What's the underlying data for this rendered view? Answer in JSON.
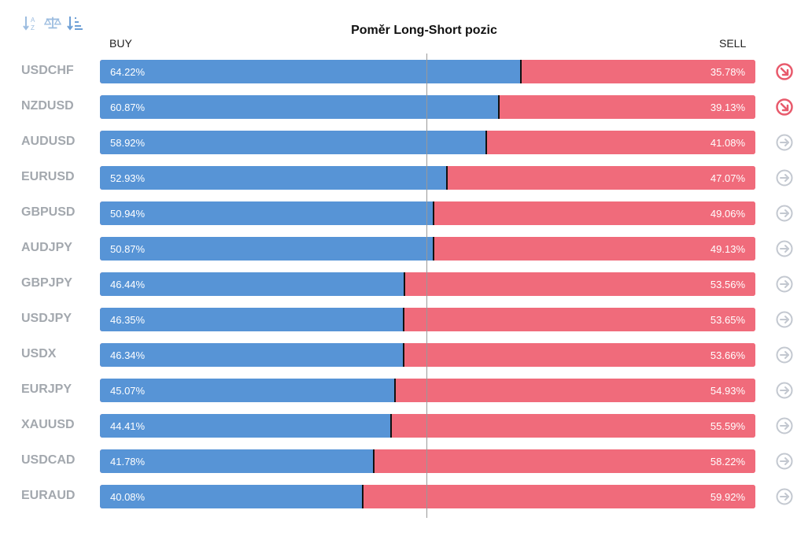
{
  "toolbar": [
    {
      "icon": "sort-alpha-icon"
    },
    {
      "icon": "balance-scale-icon"
    },
    {
      "icon": "sort-amount-icon"
    }
  ],
  "chart_data": {
    "type": "bar",
    "title": "Poměr Long-Short pozic",
    "left_label": "BUY",
    "right_label": "SELL",
    "categories": [
      "USDCHF",
      "NZDUSD",
      "AUDUSD",
      "EURUSD",
      "GBPUSD",
      "AUDJPY",
      "GBPJPY",
      "USDJPY",
      "USDX",
      "EURJPY",
      "XAUUSD",
      "USDCAD",
      "EURAUD"
    ],
    "series": [
      {
        "name": "BUY",
        "values": [
          64.22,
          60.87,
          58.92,
          52.93,
          50.94,
          50.87,
          46.44,
          46.35,
          46.34,
          45.07,
          44.41,
          41.78,
          40.08
        ],
        "labels": [
          "64.22%",
          "60.87%",
          "58.92%",
          "52.93%",
          "50.94%",
          "50.87%",
          "46.44%",
          "46.35%",
          "46.34%",
          "45.07%",
          "44.41%",
          "41.78%",
          "40.08%"
        ]
      },
      {
        "name": "SELL",
        "values": [
          35.78,
          39.13,
          41.08,
          47.07,
          49.06,
          49.13,
          53.56,
          53.65,
          53.66,
          54.93,
          55.59,
          58.22,
          59.92
        ],
        "labels": [
          "35.78%",
          "39.13%",
          "41.08%",
          "47.07%",
          "49.06%",
          "49.13%",
          "53.56%",
          "53.65%",
          "53.66%",
          "54.93%",
          "55.59%",
          "58.22%",
          "59.92%"
        ]
      }
    ],
    "trend": [
      "down-right",
      "down-right",
      "right",
      "right",
      "right",
      "right",
      "right",
      "right",
      "right",
      "right",
      "right",
      "right",
      "right"
    ],
    "xlim": [
      0,
      100
    ],
    "stacked": true,
    "center_line": 50,
    "colors": {
      "buy": "#5794d6",
      "sell": "#f06b7b",
      "trend_down": "#e85a6c",
      "trend_neutral": "#c3c8d0",
      "label": "#a3a8ae"
    }
  }
}
